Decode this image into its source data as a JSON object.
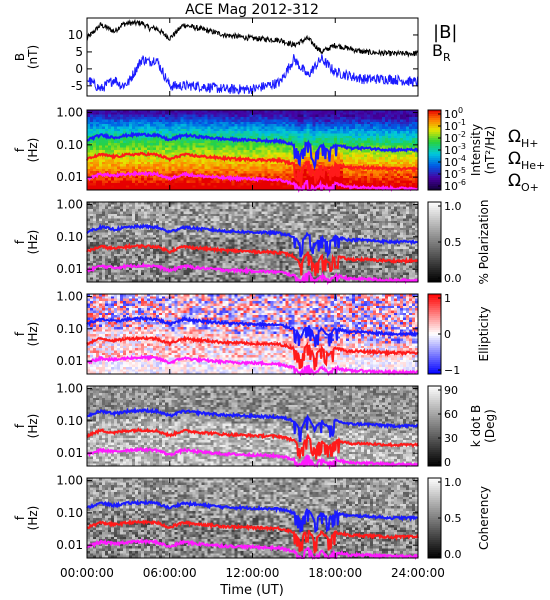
{
  "title": "ACE Mag 2012-312",
  "colors": {
    "bmag": "#000000",
    "br": "#1a1aff",
    "hplus": "#1a1aff",
    "heplus": "#ff1a1a",
    "oplus": "#ff1aff"
  },
  "chart_data": [
    {
      "type": "line",
      "panel": "field",
      "ylabel_top": "B",
      "ylabel_bottom": "(nT)",
      "ylim": [
        -8,
        15
      ],
      "yticks": [
        "10",
        "5",
        "0",
        "-5"
      ],
      "ytick_values": [
        10,
        5,
        0,
        -5
      ],
      "x": [
        "00:00",
        "01:00",
        "02:00",
        "02:30",
        "03:00",
        "04:00",
        "04:30",
        "05:00",
        "06:00",
        "07:00",
        "08:00",
        "10:00",
        "12:00",
        "14:00",
        "15:00",
        "16:00",
        "17:00",
        "18:00",
        "20:00",
        "22:00",
        "24:00"
      ],
      "series": [
        {
          "name": "|B|",
          "values": [
            9,
            13,
            11,
            13,
            13.5,
            13.5,
            12,
            12,
            9,
            13,
            12,
            10,
            9,
            8.5,
            7,
            9,
            5,
            7,
            5,
            4.5,
            4.5
          ]
        },
        {
          "name": "B",
          "sub": "R",
          "values": [
            -3,
            -6,
            -3,
            -5,
            -4,
            3,
            2,
            3,
            -5,
            -5,
            -5,
            -6,
            -6,
            -4,
            3,
            -2,
            3,
            -1,
            -3,
            -3,
            -4
          ]
        }
      ]
    },
    {
      "type": "heatmap",
      "panel": "intensity",
      "ylabel_top": "f",
      "ylabel_bottom": "(Hz)",
      "yscale": "log",
      "ylim": [
        0.004,
        1.2
      ],
      "yticks": [
        "1.00",
        "0.10",
        "0.01"
      ],
      "ytick_values": [
        1.0,
        0.1,
        0.01
      ],
      "colorbar": {
        "label": "Intensity",
        "unit": "(nT²/Hz)",
        "scale": "log",
        "ticks": [
          {
            "base": "10",
            "exp": "0"
          },
          {
            "base": "10",
            "exp": "-1"
          },
          {
            "base": "10",
            "exp": "-2"
          },
          {
            "base": "10",
            "exp": "-3"
          },
          {
            "base": "10",
            "exp": "-4"
          },
          {
            "base": "10",
            "exp": "-5"
          },
          {
            "base": "10",
            "exp": "-6"
          }
        ]
      },
      "legend": [
        {
          "text": "Ω",
          "sub": "H+",
          "color": "#1a1aff"
        },
        {
          "text": "Ω",
          "sub": "He+",
          "color": "#ff1a1a"
        },
        {
          "text": "Ω",
          "sub": "O+",
          "color": "#ff1aff"
        }
      ]
    },
    {
      "type": "heatmap",
      "panel": "polarization",
      "ylabel_top": "f",
      "ylabel_bottom": "(Hz)",
      "yscale": "log",
      "ylim": [
        0.004,
        1.2
      ],
      "yticks": [
        "1.00",
        "0.10",
        "0.01"
      ],
      "ytick_values": [
        1.0,
        0.1,
        0.01
      ],
      "colorbar": {
        "label": "% Polarization",
        "unit": "",
        "scale": "linear",
        "ticks": [
          "1.0",
          "0.5",
          "0.0"
        ],
        "tick_values": [
          1.0,
          0.5,
          0.0
        ]
      }
    },
    {
      "type": "heatmap",
      "panel": "ellipticity",
      "ylabel_top": "f",
      "ylabel_bottom": "(Hz)",
      "yscale": "log",
      "ylim": [
        0.004,
        1.2
      ],
      "yticks": [
        "1.00",
        "0.10",
        "0.01"
      ],
      "ytick_values": [
        1.0,
        0.1,
        0.01
      ],
      "colorbar": {
        "label": "Ellipticity",
        "unit": "",
        "scale": "linear",
        "ticks": [
          "1",
          "0",
          "−1"
        ],
        "tick_values": [
          1,
          0,
          -1
        ]
      }
    },
    {
      "type": "heatmap",
      "panel": "kdotb",
      "ylabel_top": "f",
      "ylabel_bottom": "(Hz)",
      "yscale": "log",
      "ylim": [
        0.004,
        1.2
      ],
      "yticks": [
        "1.00",
        "0.10",
        "0.01"
      ],
      "ytick_values": [
        1.0,
        0.1,
        0.01
      ],
      "colorbar": {
        "label": "k dot B",
        "unit": "(Deg)",
        "scale": "linear",
        "ticks": [
          "90",
          "60",
          "30",
          "0"
        ],
        "tick_values": [
          90,
          60,
          30,
          0
        ]
      }
    },
    {
      "type": "heatmap",
      "panel": "coherency",
      "ylabel_top": "f",
      "ylabel_bottom": "(Hz)",
      "yscale": "log",
      "ylim": [
        0.004,
        1.2
      ],
      "yticks": [
        "1.00",
        "0.10",
        "0.01"
      ],
      "ytick_values": [
        1.0,
        0.1,
        0.01
      ],
      "colorbar": {
        "label": "Coherency",
        "unit": "",
        "scale": "linear",
        "ticks": [
          "1.0",
          "0.5",
          "0.0"
        ],
        "tick_values": [
          1.0,
          0.5,
          0.0
        ]
      }
    }
  ],
  "gyro_lines": {
    "x": [
      "00:00",
      "01:00",
      "02:00",
      "03:00",
      "04:00",
      "05:00",
      "06:00",
      "07:00",
      "08:00",
      "10:00",
      "12:00",
      "14:00",
      "15:00",
      "15:30",
      "16:00",
      "16:30",
      "17:00",
      "17:30",
      "18:00",
      "19:00",
      "20:00",
      "22:00",
      "24:00"
    ],
    "hplus": [
      0.14,
      0.2,
      0.17,
      0.2,
      0.21,
      0.2,
      0.14,
      0.2,
      0.18,
      0.15,
      0.14,
      0.13,
      0.1,
      0.05,
      0.13,
      0.05,
      0.1,
      0.06,
      0.1,
      0.08,
      0.08,
      0.07,
      0.07
    ],
    "heplus": [
      0.035,
      0.05,
      0.043,
      0.05,
      0.052,
      0.05,
      0.035,
      0.05,
      0.045,
      0.038,
      0.035,
      0.033,
      0.025,
      0.012,
      0.033,
      0.012,
      0.025,
      0.015,
      0.025,
      0.02,
      0.02,
      0.018,
      0.018
    ],
    "oplus": [
      0.0088,
      0.0125,
      0.011,
      0.0125,
      0.013,
      0.0125,
      0.0088,
      0.0125,
      0.011,
      0.0094,
      0.0088,
      0.0081,
      0.0063,
      0.004,
      0.0081,
      0.004,
      0.0063,
      0.0045,
      0.0063,
      0.005,
      0.005,
      0.0045,
      0.0045
    ]
  },
  "xaxis": {
    "label": "Time (UT)",
    "ticks": [
      "00:00:00",
      "06:00:00",
      "12:00:00",
      "18:00:00",
      "24:00:00"
    ],
    "range_hours": [
      0,
      24
    ]
  }
}
